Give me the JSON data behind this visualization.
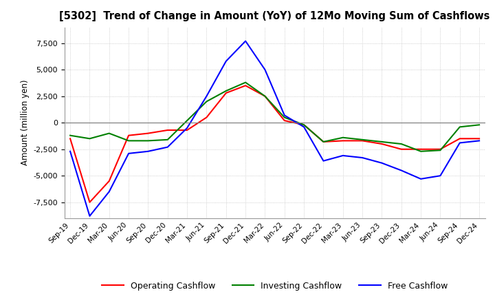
{
  "title": "[5302]  Trend of Change in Amount (YoY) of 12Mo Moving Sum of Cashflows",
  "ylabel": "Amount (million yen)",
  "x_labels": [
    "Sep-19",
    "Dec-19",
    "Mar-20",
    "Jun-20",
    "Sep-20",
    "Dec-20",
    "Mar-21",
    "Jun-21",
    "Sep-21",
    "Dec-21",
    "Mar-22",
    "Jun-22",
    "Sep-22",
    "Dec-22",
    "Mar-23",
    "Jun-23",
    "Sep-23",
    "Dec-23",
    "Mar-24",
    "Jun-24",
    "Sep-24",
    "Dec-24"
  ],
  "operating": [
    -1500,
    -7500,
    -5500,
    -1200,
    -1000,
    -700,
    -700,
    500,
    2800,
    3500,
    2500,
    200,
    -200,
    -1800,
    -1700,
    -1700,
    -2000,
    -2500,
    -2500,
    -2500,
    -1500,
    -1500
  ],
  "investing": [
    -1200,
    -1500,
    -1000,
    -1700,
    -1700,
    -1600,
    200,
    2000,
    3000,
    3800,
    2500,
    500,
    -200,
    -1800,
    -1400,
    -1600,
    -1800,
    -2000,
    -2700,
    -2600,
    -400,
    -200
  ],
  "free": [
    -2700,
    -8800,
    -6500,
    -2900,
    -2700,
    -2300,
    -500,
    2500,
    5800,
    7700,
    5000,
    700,
    -400,
    -3600,
    -3100,
    -3300,
    -3800,
    -4500,
    -5300,
    -5000,
    -1900,
    -1700
  ],
  "ylim": [
    -9000,
    9000
  ],
  "yticks": [
    -7500,
    -5000,
    -2500,
    0,
    2500,
    5000,
    7500
  ],
  "operating_color": "#ff0000",
  "investing_color": "#008000",
  "free_color": "#0000ff",
  "bg_color": "#ffffff",
  "grid_color": "#c0c0c0"
}
